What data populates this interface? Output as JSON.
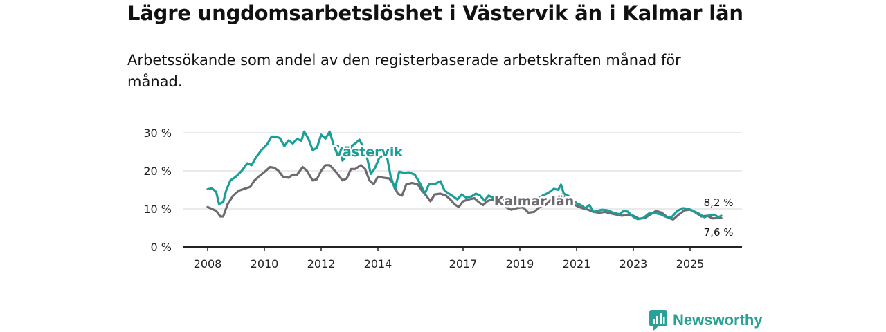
{
  "title": "Lägre ungdomsarbetslöshet i Västervik än i Kalmar län",
  "subtitle": "Arbetssökande som andel av den registerbaserade arbetskraften månad för månad.",
  "brand": {
    "name": "Newsworthy",
    "icon": "newsworthy-logo-icon"
  },
  "colors": {
    "vastervik": "#1a9e97",
    "kalmar": "#6d6a70",
    "grid": "#d4d4d4",
    "axis": "#222222"
  },
  "chart_data": {
    "type": "line",
    "title": "Lägre ungdomsarbetslöshet i Västervik än i Kalmar län",
    "xlabel": "",
    "ylabel": "",
    "ylim": [
      0,
      30
    ],
    "xlim": [
      2008,
      2026.2
    ],
    "y_ticks": [
      0,
      10,
      20,
      30
    ],
    "y_tick_labels": [
      "0 %",
      "10 %",
      "20 %",
      "30 %"
    ],
    "x_ticks": [
      2008,
      2010,
      2012,
      2014,
      2017,
      2019,
      2021,
      2023,
      2025
    ],
    "x_tick_labels": [
      "2008",
      "2010",
      "2012",
      "2014",
      "2017",
      "2019",
      "2021",
      "2023",
      "2025"
    ],
    "grid": true,
    "series": [
      {
        "name": "Västervik",
        "end_label": "8,2 %",
        "points": [
          [
            2008.0,
            15.2
          ],
          [
            2008.15,
            15.4
          ],
          [
            2008.3,
            14.5
          ],
          [
            2008.4,
            11.3
          ],
          [
            2008.55,
            11.8
          ],
          [
            2008.65,
            14.8
          ],
          [
            2008.8,
            17.5
          ],
          [
            2009.0,
            18.5
          ],
          [
            2009.2,
            20.0
          ],
          [
            2009.4,
            22.0
          ],
          [
            2009.55,
            21.5
          ],
          [
            2009.7,
            23.5
          ],
          [
            2009.9,
            25.5
          ],
          [
            2010.1,
            27.0
          ],
          [
            2010.25,
            29.0
          ],
          [
            2010.4,
            29.0
          ],
          [
            2010.55,
            28.6
          ],
          [
            2010.7,
            26.5
          ],
          [
            2010.85,
            28.0
          ],
          [
            2011.0,
            27.2
          ],
          [
            2011.15,
            28.4
          ],
          [
            2011.3,
            27.9
          ],
          [
            2011.4,
            30.3
          ],
          [
            2011.55,
            28.5
          ],
          [
            2011.7,
            25.5
          ],
          [
            2011.85,
            26.0
          ],
          [
            2012.0,
            29.5
          ],
          [
            2012.15,
            28.5
          ],
          [
            2012.3,
            30.3
          ],
          [
            2012.45,
            26.5
          ],
          [
            2012.6,
            26.5
          ],
          [
            2012.75,
            22.7
          ],
          [
            2012.9,
            24.0
          ],
          [
            2013.05,
            26.3
          ],
          [
            2013.2,
            27.2
          ],
          [
            2013.35,
            28.2
          ],
          [
            2013.45,
            26.7
          ],
          [
            2013.55,
            25.5
          ],
          [
            2013.75,
            19.2
          ],
          [
            2013.9,
            20.8
          ],
          [
            2014.05,
            23.5
          ],
          [
            2014.3,
            24.5
          ],
          [
            2014.45,
            18.5
          ],
          [
            2014.6,
            15.2
          ],
          [
            2014.75,
            19.8
          ],
          [
            2014.9,
            19.5
          ],
          [
            2015.1,
            19.6
          ],
          [
            2015.3,
            19.0
          ],
          [
            2015.5,
            16.5
          ],
          [
            2015.65,
            14.0
          ],
          [
            2015.8,
            16.5
          ],
          [
            2016.0,
            16.5
          ],
          [
            2016.2,
            17.3
          ],
          [
            2016.35,
            14.8
          ],
          [
            2016.5,
            14.0
          ],
          [
            2016.65,
            13.3
          ],
          [
            2016.8,
            12.5
          ],
          [
            2016.95,
            13.8
          ],
          [
            2017.1,
            13.0
          ],
          [
            2017.3,
            13.3
          ],
          [
            2017.45,
            14.0
          ],
          [
            2017.6,
            13.5
          ],
          [
            2017.75,
            12.2
          ],
          [
            2017.9,
            13.5
          ],
          [
            2018.1,
            12.8
          ],
          [
            2018.3,
            13.2
          ],
          [
            2018.45,
            12.4
          ],
          [
            2018.6,
            11.0
          ],
          [
            2018.8,
            11.4
          ],
          [
            2019.0,
            11.8
          ],
          [
            2019.2,
            11.0
          ],
          [
            2019.4,
            11.8
          ],
          [
            2019.6,
            12.5
          ],
          [
            2019.8,
            13.5
          ],
          [
            2020.0,
            14.2
          ],
          [
            2020.2,
            15.3
          ],
          [
            2020.35,
            15.0
          ],
          [
            2020.45,
            16.4
          ],
          [
            2020.55,
            14.0
          ],
          [
            2020.7,
            13.5
          ],
          [
            2020.85,
            12.5
          ],
          [
            2021.0,
            11.5
          ],
          [
            2021.15,
            11.0
          ],
          [
            2021.3,
            10.2
          ],
          [
            2021.45,
            11.0
          ],
          [
            2021.6,
            9.2
          ],
          [
            2021.75,
            9.5
          ],
          [
            2021.9,
            9.8
          ],
          [
            2022.1,
            9.6
          ],
          [
            2022.3,
            9.0
          ],
          [
            2022.5,
            8.6
          ],
          [
            2022.65,
            9.4
          ],
          [
            2022.8,
            9.3
          ],
          [
            2023.0,
            7.9
          ],
          [
            2023.15,
            7.3
          ],
          [
            2023.35,
            7.6
          ],
          [
            2023.55,
            8.8
          ],
          [
            2023.75,
            8.9
          ],
          [
            2023.95,
            8.6
          ],
          [
            2024.15,
            7.9
          ],
          [
            2024.35,
            7.8
          ],
          [
            2024.55,
            9.5
          ],
          [
            2024.75,
            10.2
          ],
          [
            2024.95,
            10.0
          ],
          [
            2025.1,
            9.5
          ],
          [
            2025.3,
            8.8
          ],
          [
            2025.5,
            7.8
          ],
          [
            2025.7,
            8.4
          ],
          [
            2025.85,
            8.5
          ],
          [
            2026.0,
            7.8
          ],
          [
            2026.1,
            8.2
          ]
        ]
      },
      {
        "name": "Kalmar län",
        "end_label": "7,6 %",
        "points": [
          [
            2008.0,
            10.5
          ],
          [
            2008.15,
            10.0
          ],
          [
            2008.3,
            9.5
          ],
          [
            2008.45,
            8.0
          ],
          [
            2008.55,
            8.0
          ],
          [
            2008.7,
            11.2
          ],
          [
            2008.9,
            13.5
          ],
          [
            2009.1,
            14.8
          ],
          [
            2009.3,
            15.3
          ],
          [
            2009.5,
            15.8
          ],
          [
            2009.65,
            17.5
          ],
          [
            2009.8,
            18.5
          ],
          [
            2010.0,
            19.7
          ],
          [
            2010.2,
            21.0
          ],
          [
            2010.35,
            20.8
          ],
          [
            2010.5,
            20.0
          ],
          [
            2010.65,
            18.5
          ],
          [
            2010.85,
            18.2
          ],
          [
            2011.0,
            19.0
          ],
          [
            2011.15,
            19.0
          ],
          [
            2011.35,
            21.0
          ],
          [
            2011.5,
            20.0
          ],
          [
            2011.7,
            17.5
          ],
          [
            2011.85,
            17.8
          ],
          [
            2012.0,
            20.0
          ],
          [
            2012.15,
            21.5
          ],
          [
            2012.3,
            21.5
          ],
          [
            2012.45,
            20.3
          ],
          [
            2012.6,
            19.0
          ],
          [
            2012.75,
            17.5
          ],
          [
            2012.9,
            18.0
          ],
          [
            2013.05,
            20.5
          ],
          [
            2013.2,
            20.5
          ],
          [
            2013.4,
            21.5
          ],
          [
            2013.55,
            20.5
          ],
          [
            2013.7,
            17.5
          ],
          [
            2013.85,
            16.5
          ],
          [
            2014.0,
            18.5
          ],
          [
            2014.2,
            18.2
          ],
          [
            2014.4,
            18.0
          ],
          [
            2014.55,
            16.5
          ],
          [
            2014.7,
            14.0
          ],
          [
            2014.85,
            13.5
          ],
          [
            2015.0,
            16.5
          ],
          [
            2015.2,
            16.8
          ],
          [
            2015.4,
            16.5
          ],
          [
            2015.55,
            14.8
          ],
          [
            2015.7,
            13.5
          ],
          [
            2015.85,
            12.0
          ],
          [
            2016.0,
            13.8
          ],
          [
            2016.2,
            14.0
          ],
          [
            2016.4,
            13.5
          ],
          [
            2016.55,
            12.5
          ],
          [
            2016.7,
            11.2
          ],
          [
            2016.85,
            10.5
          ],
          [
            2017.0,
            12.0
          ],
          [
            2017.2,
            12.5
          ],
          [
            2017.4,
            12.8
          ],
          [
            2017.55,
            11.8
          ],
          [
            2017.7,
            11.0
          ],
          [
            2017.85,
            12.0
          ],
          [
            2018.0,
            12.5
          ],
          [
            2018.2,
            11.8
          ],
          [
            2018.4,
            11.5
          ],
          [
            2018.55,
            10.3
          ],
          [
            2018.7,
            9.8
          ],
          [
            2018.9,
            10.2
          ],
          [
            2019.1,
            10.5
          ],
          [
            2019.3,
            9.0
          ],
          [
            2019.5,
            9.2
          ],
          [
            2019.7,
            10.5
          ],
          [
            2019.9,
            11.0
          ],
          [
            2020.1,
            12.5
          ],
          [
            2020.3,
            13.2
          ],
          [
            2020.5,
            13.8
          ],
          [
            2020.65,
            12.5
          ],
          [
            2020.8,
            11.5
          ],
          [
            2021.0,
            10.8
          ],
          [
            2021.2,
            10.2
          ],
          [
            2021.4,
            9.8
          ],
          [
            2021.6,
            9.2
          ],
          [
            2021.8,
            9.0
          ],
          [
            2022.0,
            9.2
          ],
          [
            2022.2,
            8.8
          ],
          [
            2022.4,
            8.5
          ],
          [
            2022.6,
            8.2
          ],
          [
            2022.8,
            8.5
          ],
          [
            2023.0,
            8.2
          ],
          [
            2023.2,
            7.4
          ],
          [
            2023.4,
            7.6
          ],
          [
            2023.6,
            8.5
          ],
          [
            2023.8,
            9.5
          ],
          [
            2024.0,
            9.0
          ],
          [
            2024.2,
            7.8
          ],
          [
            2024.4,
            7.2
          ],
          [
            2024.6,
            8.5
          ],
          [
            2024.8,
            9.6
          ],
          [
            2025.0,
            9.8
          ],
          [
            2025.2,
            9.0
          ],
          [
            2025.4,
            8.0
          ],
          [
            2025.6,
            8.2
          ],
          [
            2025.8,
            7.5
          ],
          [
            2026.0,
            7.6
          ],
          [
            2026.1,
            7.6
          ]
        ]
      }
    ],
    "annotations": [
      {
        "text": "Västervik",
        "series": "Västervik",
        "anchor": [
          2013.65,
          23.8
        ]
      },
      {
        "text": "Kalmar län",
        "series": "Kalmar län",
        "anchor": [
          2019.5,
          10.9
        ]
      }
    ]
  }
}
